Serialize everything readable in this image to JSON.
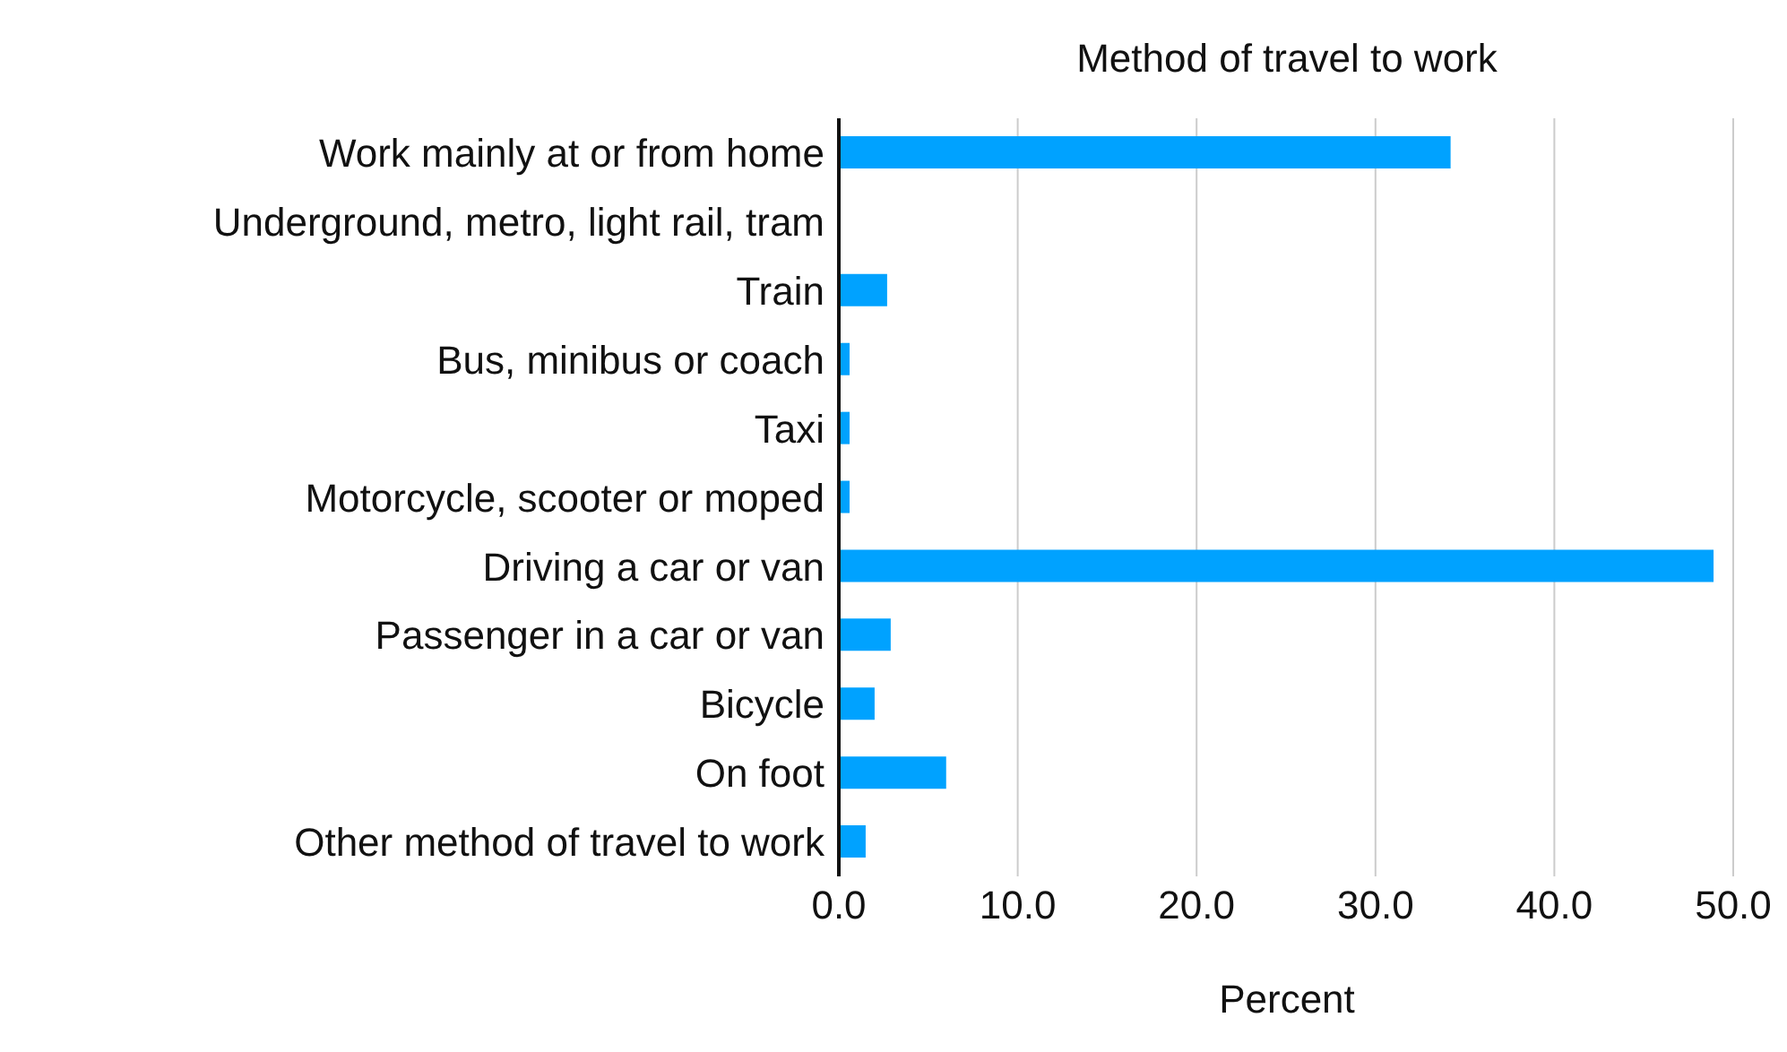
{
  "chart_data": {
    "type": "bar",
    "orientation": "horizontal",
    "title": "Method of travel to work",
    "xlabel": "Percent",
    "categories": [
      "Work mainly at or from home",
      "Underground, metro, light rail, tram",
      "Train",
      "Bus, minibus or coach",
      "Taxi",
      "Motorcycle, scooter or moped",
      "Driving a car or van",
      "Passenger in a car or van",
      "Bicycle",
      "On foot",
      "Other method of travel to work"
    ],
    "values": [
      34.2,
      0,
      2.7,
      0.6,
      0.6,
      0.6,
      48.9,
      2.9,
      2.0,
      6.0,
      1.5
    ],
    "color": "#00a2ff",
    "xlim": [
      0,
      50
    ],
    "xticks": [
      {
        "value": 0,
        "label": "0.0"
      },
      {
        "value": 10,
        "label": "10.0"
      },
      {
        "value": 20,
        "label": "20.0"
      },
      {
        "value": 30,
        "label": "30.0"
      },
      {
        "value": 40,
        "label": "40.0"
      },
      {
        "value": 50,
        "label": "50.0"
      }
    ],
    "grid": "x"
  }
}
